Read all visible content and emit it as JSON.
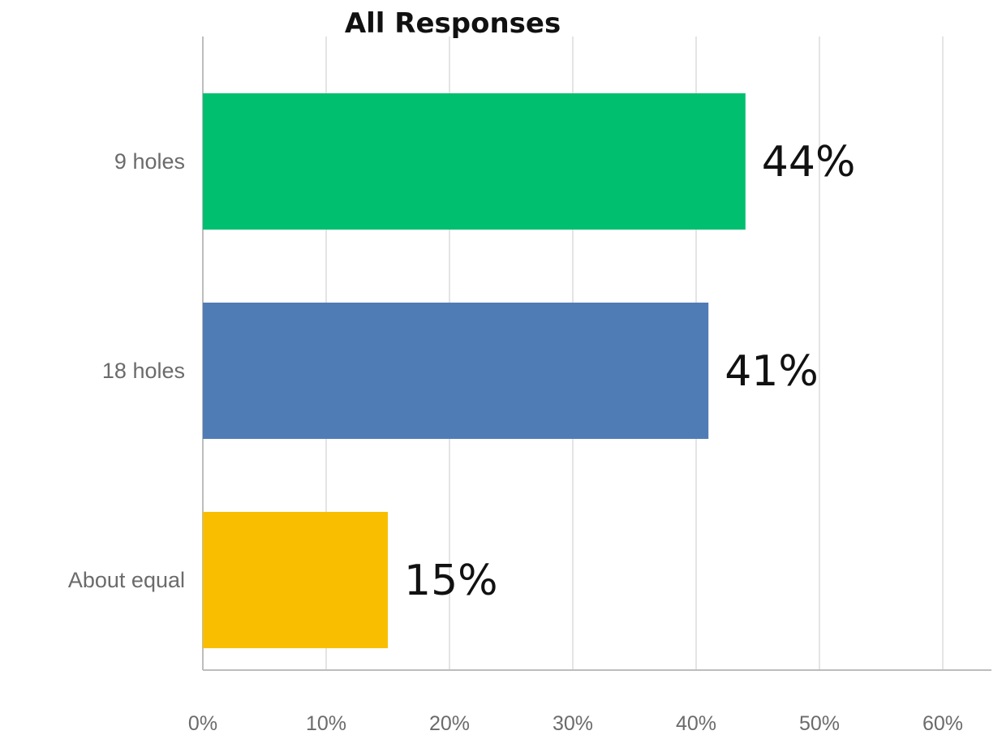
{
  "chart_data": {
    "type": "bar",
    "orientation": "horizontal",
    "title": "All Responses",
    "xlabel": "",
    "ylabel": "",
    "categories": [
      "9 holes",
      "18 holes",
      "About equal"
    ],
    "values": [
      44,
      41,
      15
    ],
    "value_labels": [
      "44%",
      "41%",
      "15%"
    ],
    "colors": [
      "#00bf6f",
      "#507cb6",
      "#f9be00"
    ],
    "xlim": [
      0,
      60
    ],
    "xticks": [
      0,
      10,
      20,
      30,
      40,
      50,
      60
    ],
    "xtick_labels": [
      "0%",
      "10%",
      "20%",
      "30%",
      "40%",
      "50%",
      "60%"
    ],
    "grid": true,
    "legend": "none"
  }
}
